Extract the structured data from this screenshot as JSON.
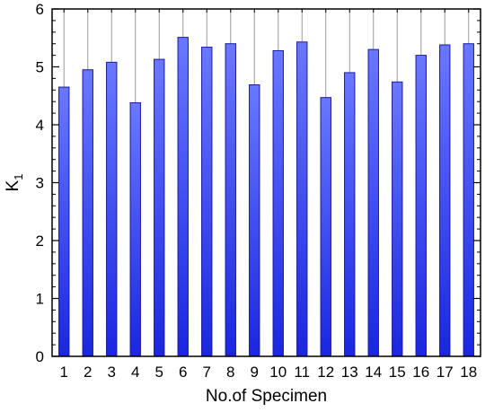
{
  "chart_data": {
    "type": "bar",
    "categories": [
      "1",
      "2",
      "3",
      "4",
      "5",
      "6",
      "7",
      "8",
      "9",
      "10",
      "11",
      "12",
      "13",
      "14",
      "15",
      "16",
      "17",
      "18"
    ],
    "values": [
      4.65,
      4.95,
      5.08,
      4.38,
      5.13,
      5.51,
      5.34,
      5.4,
      4.69,
      5.28,
      5.43,
      4.47,
      4.9,
      5.3,
      4.74,
      5.2,
      5.38,
      5.4
    ],
    "xlabel": "No.of Specimen",
    "ylabel_main": "K",
    "ylabel_sub": "1",
    "ylim": [
      0,
      6
    ],
    "yticks": [
      0,
      1,
      2,
      3,
      4,
      5,
      6
    ],
    "grid": "vertical",
    "bar_color_top": "#6a78ff",
    "bar_color_bottom": "#1a26e0",
    "bar_edge_color": "#1a1aa0"
  }
}
